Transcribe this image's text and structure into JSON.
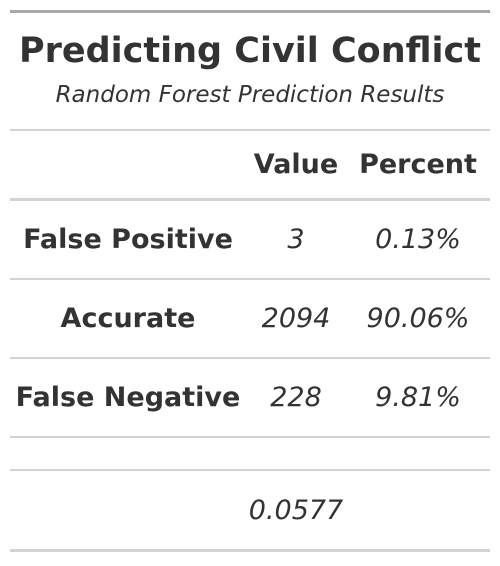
{
  "table": {
    "title": "Predicting Civil Conflict",
    "subtitle": "Random Forest Prediction Results",
    "headers": {
      "label": "",
      "value": "Value",
      "percent": "Percent"
    },
    "rows": [
      {
        "label": "False Positive",
        "value": "3",
        "percent": "0.13%"
      },
      {
        "label": "Accurate",
        "value": "2094",
        "percent": "90.06%"
      },
      {
        "label": "False Negative",
        "value": "228",
        "percent": "9.81%"
      }
    ],
    "footer": {
      "label": "",
      "value": "0.0577",
      "percent": ""
    }
  }
}
